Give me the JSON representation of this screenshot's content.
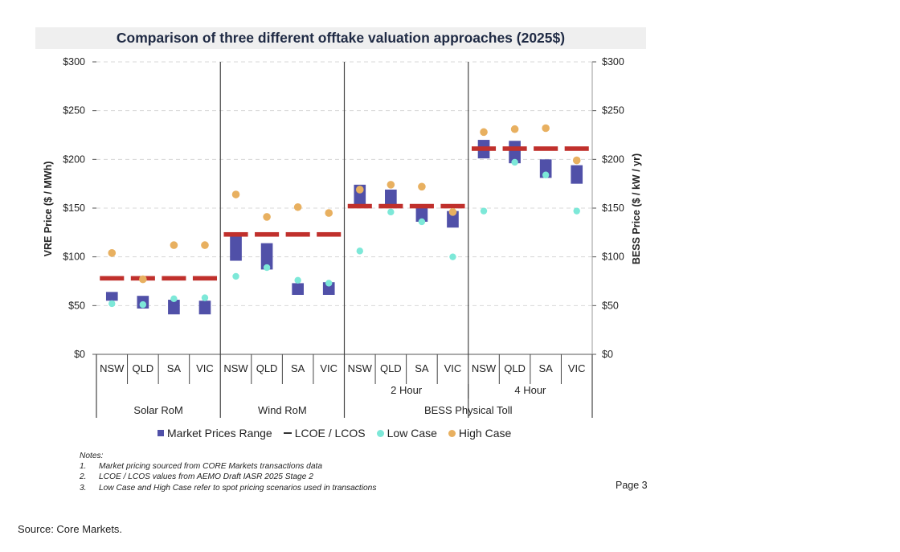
{
  "title": "Comparison of three different offtake valuation approaches (2025$)",
  "y_left_label": "VRE Price ($ / MWh)",
  "y_right_label": "BESS Price ($ / kW / yr)",
  "y_ticks": [
    "$0",
    "$50",
    "$100",
    "$150",
    "$200",
    "$250",
    "$300"
  ],
  "legend": [
    {
      "label": "Market Prices Range",
      "symbol": "bar",
      "color": "#5050a8"
    },
    {
      "label": "LCOE / LCOS",
      "symbol": "dash",
      "color": "#333333"
    },
    {
      "label": "Low Case",
      "symbol": "dot",
      "color": "#7de8d8"
    },
    {
      "label": "High Case",
      "symbol": "dot",
      "color": "#e8b060"
    }
  ],
  "group_labels": [
    "Solar RoM",
    "Wind RoM",
    "BESS Physical Toll"
  ],
  "subgroup_labels": [
    "2 Hour",
    "4 Hour"
  ],
  "notes": {
    "heading": "Notes:",
    "items": [
      {
        "num": "1.",
        "text": "Market pricing sourced from CORE Markets transactions data"
      },
      {
        "num": "2.",
        "text": "LCOE / LCOS values from AEMO Draft IASR 2025 Stage 2"
      },
      {
        "num": "3.",
        "text": "Low Case and High Case refer to spot pricing scenarios used in transactions"
      }
    ]
  },
  "page_label": "Page 3",
  "source": "Source: Core Markets.",
  "colors": {
    "bar": "#5050a8",
    "lcoe": "#c0302c",
    "low": "#7de8d8",
    "high": "#e8b060"
  },
  "chart_data": {
    "type": "bar",
    "title": "Comparison of three different offtake valuation approaches (2025$)",
    "ylabel": "VRE Price ($ / MWh)",
    "y2label": "BESS Price ($ / kW / yr)",
    "ylim": [
      0,
      300
    ],
    "legend_position": "bottom",
    "grid": true,
    "categories": [
      "NSW",
      "QLD",
      "SA",
      "VIC",
      "NSW",
      "QLD",
      "SA",
      "VIC",
      "NSW",
      "QLD",
      "SA",
      "VIC",
      "NSW",
      "QLD",
      "SA",
      "VIC"
    ],
    "groups": [
      "Solar RoM",
      "Solar RoM",
      "Solar RoM",
      "Solar RoM",
      "Wind RoM",
      "Wind RoM",
      "Wind RoM",
      "Wind RoM",
      "BESS Physical Toll",
      "BESS Physical Toll",
      "BESS Physical Toll",
      "BESS Physical Toll",
      "BESS Physical Toll",
      "BESS Physical Toll",
      "BESS Physical Toll",
      "BESS Physical Toll"
    ],
    "subgroups": [
      "",
      "",
      "",
      "",
      "",
      "",
      "",
      "",
      "2 Hour",
      "2 Hour",
      "2 Hour",
      "2 Hour",
      "4 Hour",
      "4 Hour",
      "4 Hour",
      "4 Hour"
    ],
    "series": [
      {
        "name": "Market Prices Range",
        "low": [
          55,
          47,
          41,
          41,
          96,
          87,
          61,
          61,
          153,
          153,
          136,
          130,
          201,
          196,
          181,
          175
        ],
        "high": [
          64,
          60,
          56,
          55,
          122,
          114,
          73,
          74,
          174,
          169,
          152,
          147,
          220,
          219,
          200,
          194
        ]
      },
      {
        "name": "LCOE / LCOS",
        "values": [
          78,
          78,
          78,
          78,
          123,
          123,
          123,
          123,
          152,
          152,
          152,
          152,
          211,
          211,
          211,
          211
        ]
      },
      {
        "name": "Low Case",
        "values": [
          52,
          51,
          57,
          58,
          80,
          89,
          76,
          73,
          106,
          146,
          136,
          100,
          147,
          197,
          184,
          147
        ]
      },
      {
        "name": "High Case",
        "values": [
          104,
          77,
          112,
          112,
          164,
          141,
          151,
          145,
          169,
          174,
          172,
          146,
          228,
          231,
          232,
          199
        ]
      }
    ]
  }
}
